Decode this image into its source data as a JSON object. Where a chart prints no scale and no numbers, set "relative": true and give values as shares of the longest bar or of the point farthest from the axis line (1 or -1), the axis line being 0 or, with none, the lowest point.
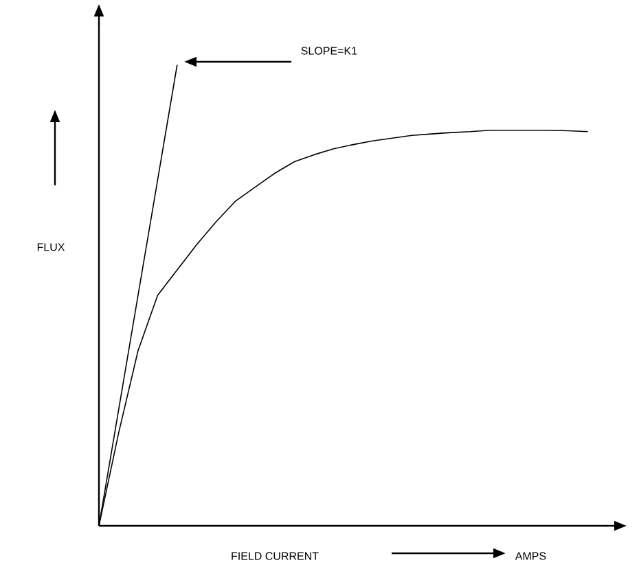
{
  "chart_data": {
    "type": "line",
    "relative": true,
    "xlabel": "FIELD CURRENT",
    "ylabel": "FLUX",
    "annotations": [
      "SLOPE=K1",
      "AMPS"
    ],
    "categories": [
      null,
      null,
      null,
      null,
      null,
      null,
      null,
      null,
      null,
      null,
      null,
      null,
      null,
      null,
      null,
      null,
      null,
      null,
      null,
      null,
      null,
      null,
      null,
      null,
      null,
      null
    ],
    "series": [
      {
        "color": "#000000",
        "values": [
          0,
          0.2,
          0.38,
          0.5,
          0.555,
          0.61,
          0.66,
          0.705,
          0.735,
          0.765,
          0.79,
          0.805,
          0.818,
          0.827,
          0.835,
          0.841,
          0.847,
          0.85,
          0.853,
          0.855,
          0.858,
          0.858,
          0.858,
          0.858,
          0.857,
          0.855
        ]
      },
      {
        "color": "#000000",
        "values": [
          0,
          0.25,
          0.5,
          0.75,
          1,
          null,
          null,
          null,
          null,
          null,
          null,
          null,
          null,
          null,
          null,
          null,
          null,
          null,
          null,
          null,
          null,
          null,
          null,
          null,
          null,
          null
        ]
      }
    ]
  }
}
